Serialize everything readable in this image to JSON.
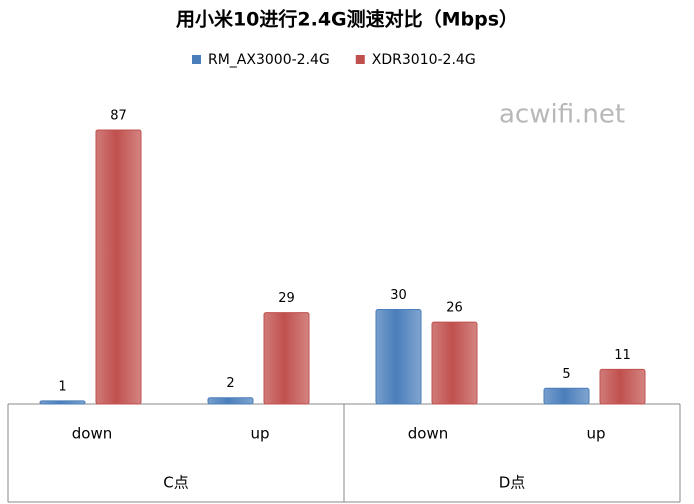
{
  "chart_data": {
    "type": "bar",
    "title": "用小米10进行2.4G测速对比（Mbps）",
    "watermark": "acwifi.net",
    "categories": [
      "down",
      "up",
      "down",
      "up"
    ],
    "group_labels": [
      "C点",
      "D点"
    ],
    "series": [
      {
        "name": "RM_AX3000-2.4G",
        "color": "#4a7ebb",
        "values": [
          1,
          2,
          30,
          5
        ]
      },
      {
        "name": "XDR3010-2.4G",
        "color": "#c0504d",
        "values": [
          87,
          29,
          26,
          11
        ]
      }
    ],
    "ylim": [
      0,
      100
    ],
    "legend": "top"
  }
}
